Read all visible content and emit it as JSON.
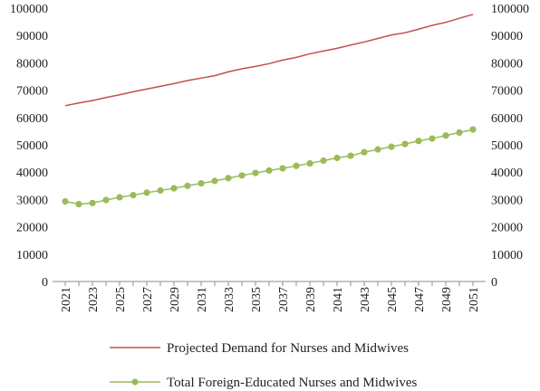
{
  "chart_data": {
    "type": "line",
    "title": "",
    "xlabel": "",
    "ylabel": "",
    "ylim": [
      0,
      100000
    ],
    "yticks": [
      0,
      10000,
      20000,
      30000,
      40000,
      50000,
      60000,
      70000,
      80000,
      90000,
      100000
    ],
    "y_axis_both_sides": true,
    "xticks_labeled": [
      2021,
      2023,
      2025,
      2027,
      2029,
      2031,
      2033,
      2035,
      2037,
      2039,
      2041,
      2043,
      2045,
      2047,
      2049,
      2051
    ],
    "x": [
      2021,
      2022,
      2023,
      2024,
      2025,
      2026,
      2027,
      2028,
      2029,
      2030,
      2031,
      2032,
      2033,
      2034,
      2035,
      2036,
      2037,
      2038,
      2039,
      2040,
      2041,
      2042,
      2043,
      2044,
      2045,
      2046,
      2047,
      2048,
      2049,
      2050,
      2051
    ],
    "grid": false,
    "legend_position": "bottom",
    "series": [
      {
        "name": "Projected Demand for Nurses and Midwives",
        "color": "#c0504d",
        "marker": "none",
        "values": [
          64300,
          65300,
          66200,
          67300,
          68300,
          69400,
          70400,
          71400,
          72400,
          73500,
          74400,
          75300,
          76700,
          77800,
          78700,
          79700,
          81000,
          82000,
          83300,
          84300,
          85300,
          86500,
          87600,
          88900,
          90200,
          91000,
          92300,
          93700,
          94800,
          96300,
          97700
        ]
      },
      {
        "name": "Total Foreign-Educated Nurses and Midwives",
        "color": "#9bbb59",
        "marker": "circle",
        "values": [
          29300,
          28300,
          28700,
          29800,
          30800,
          31600,
          32500,
          33300,
          34100,
          35000,
          35900,
          36800,
          37800,
          38800,
          39700,
          40600,
          41400,
          42300,
          43200,
          44200,
          45200,
          46000,
          47300,
          48300,
          49300,
          50300,
          51400,
          52300,
          53400,
          54500,
          55600
        ]
      }
    ]
  }
}
